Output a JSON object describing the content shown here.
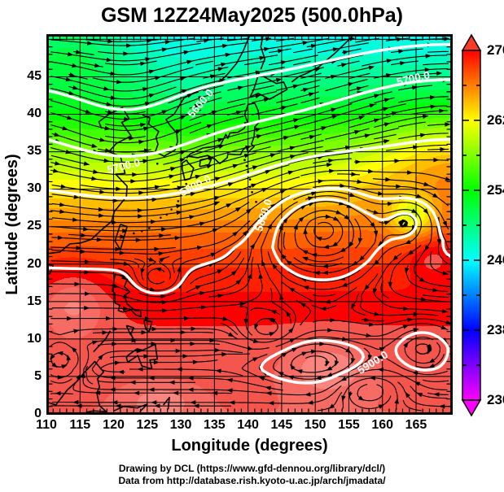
{
  "title": "GSM 12Z24May2025 (500.0hPa)",
  "x_axis": {
    "label": "Longitude (degrees)",
    "ticks": [
      "110",
      "115",
      "120",
      "125",
      "130",
      "135",
      "140",
      "145",
      "150",
      "155",
      "160",
      "165"
    ]
  },
  "y_axis": {
    "label": "Latitude  (degrees)",
    "ticks": [
      "0",
      "5",
      "10",
      "15",
      "20",
      "25",
      "30",
      "35",
      "40",
      "45"
    ]
  },
  "colorbar": {
    "labels": [
      "270",
      "262",
      "254",
      "246",
      "238",
      "230"
    ]
  },
  "contour_labels": [
    {
      "text": "5600.0",
      "lon": 133.0,
      "lat": 41.4,
      "rot_deg": -50
    },
    {
      "text": "5700.0",
      "lon": 121.5,
      "lat": 33.0,
      "rot_deg": -14
    },
    {
      "text": "5700.0",
      "lon": 164.6,
      "lat": 44.7,
      "rot_deg": -13
    },
    {
      "text": "5800.0",
      "lon": 132.2,
      "lat": 30.4,
      "rot_deg": -28
    },
    {
      "text": "5880.0",
      "lon": 142.4,
      "lat": 26.5,
      "rot_deg": -72
    },
    {
      "text": "5900.0",
      "lon": 158.6,
      "lat": 6.8,
      "rot_deg": -32
    }
  ],
  "footer": {
    "line1": "Drawing by DCL (https://www.gfd-dennou.org/library/dcl/)",
    "line2": "Data from http://database.rish.kyoto-u.ac.jp/arch/jmadata/"
  },
  "chart_data": {
    "type": "heatmap",
    "title": "GSM 12Z24May2025 (500.0hPa)",
    "xlabel": "Longitude (degrees)",
    "ylabel": "Latitude (degrees)",
    "xlim": [
      110,
      170
    ],
    "ylim": [
      0,
      50.6
    ],
    "x_ticks": [
      110,
      115,
      120,
      125,
      130,
      135,
      140,
      145,
      150,
      155,
      160,
      165
    ],
    "y_ticks": [
      0,
      5,
      10,
      15,
      20,
      25,
      30,
      35,
      40,
      45
    ],
    "grid": true,
    "colorbar": {
      "position": "right",
      "min": 230,
      "max": 270,
      "labeled_ticks": [
        270,
        262,
        254,
        246,
        238,
        230
      ],
      "minor_tick_step": 4,
      "palette": "rainbow: magenta(230) blue(238) cyan(246) green(254) yellow(262) orange(266) red(270)",
      "over_arrow_color": "#ff2a1a",
      "under_arrow_color": "#ff00ff"
    },
    "layers": [
      {
        "name": "temperature shading",
        "units": "K",
        "description": "red/salmon >=270K over tropics (lat 0-20) grading through orange (lat 25-32), yellow (~35), green (~40-45) to cyan ~246-248K along the northern edge; cold trough over NW China/Korea, warm ridge in far SE, cool yellow core at 164.5E 26.5N"
      },
      {
        "name": "geopotential height contours",
        "color": "#ffffff",
        "labeled_levels": [
          5600,
          5700,
          5800,
          5880,
          5900
        ],
        "label_texts": [
          "5600.0",
          "5700.0",
          "5800.0",
          "5880.0",
          "5900.0"
        ]
      },
      {
        "name": "wind streamlines",
        "color": "#000000",
        "features": [
          {
            "type": "anticyclone spiral",
            "lon": 151,
            "lat": 26.5
          },
          {
            "type": "anticyclone spiral",
            "lon": 164.5,
            "lat": 26.5
          },
          {
            "type": "closed cyclonic eddy",
            "lon": 126.5,
            "lat": 17.8
          },
          {
            "type": "cyclonic eddy",
            "lon": 112,
            "lat": 7
          },
          {
            "type": "trough",
            "lon": 122,
            "lat": 38
          },
          {
            "type": "westerlies",
            "lat_range": [
              30,
              50
            ]
          },
          {
            "type": "easterlies",
            "lat_range": [
              0,
              6
            ]
          }
        ]
      }
    ],
    "map_overlay": "coastlines of East Asia: China, Korea, Japan, Sakhalin, Kurils, Taiwan, Philippines, Borneo"
  }
}
